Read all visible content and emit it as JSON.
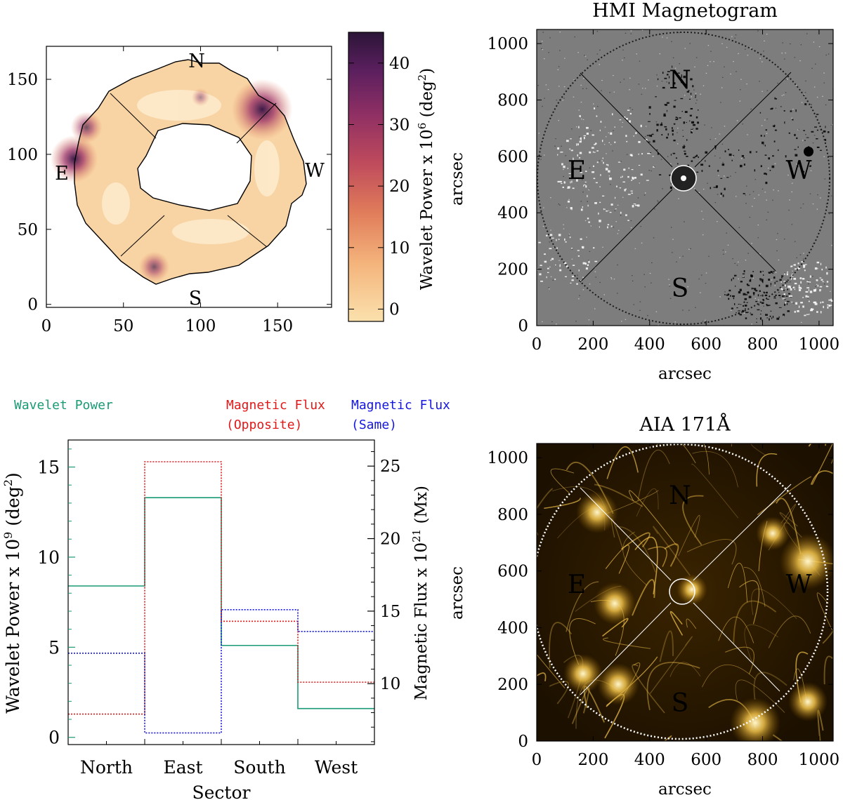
{
  "colors": {
    "wavelet": "#1a9a74",
    "opposite": "#e01818",
    "same": "#1515e0",
    "aia_bg": "#2a1800",
    "aia_bright": "#f3c44a",
    "hmi_bg": "#7d7d7d"
  },
  "chart_data": [
    {
      "id": "wavelet-map",
      "type": "heatmap",
      "title": "",
      "xlabel": "",
      "ylabel": "arcsec",
      "xlim": [
        0,
        185
      ],
      "ylim": [
        -2,
        172
      ],
      "xticks": [
        "0",
        "50",
        "100",
        "150"
      ],
      "yticks": [
        "0",
        "50",
        "100",
        "150"
      ],
      "directions": {
        "n": "N",
        "s": "S",
        "e": "E",
        "w": "W"
      },
      "colorbar": {
        "label": "Wavelet Power x 10",
        "exponent": "6",
        "unit_open": "(deg",
        "unit_exp": "2",
        "unit_close": ")",
        "range": [
          -2,
          45
        ],
        "ticks": [
          "0",
          "10",
          "20",
          "30",
          "40"
        ]
      },
      "hot_spots": [
        {
          "x": 140,
          "y": 130,
          "value": 44
        },
        {
          "x": 18,
          "y": 97,
          "value": 32
        },
        {
          "x": 26,
          "y": 118,
          "value": 18
        },
        {
          "x": 70,
          "y": 25,
          "value": 17
        },
        {
          "x": 100,
          "y": 138,
          "value": 6
        }
      ]
    },
    {
      "id": "hmi",
      "type": "heatmap",
      "title": "HMI Magnetogram",
      "xlabel": "arcsec",
      "xlim": [
        0,
        1050
      ],
      "ylim": [
        0,
        1050
      ],
      "xticks": [
        "0",
        "200",
        "400",
        "600",
        "800",
        "1000"
      ],
      "yticks": [
        "0",
        "200",
        "400",
        "600",
        "800",
        "1000"
      ],
      "directions": {
        "n": "N",
        "s": "S",
        "e": "E",
        "w": "W"
      }
    },
    {
      "id": "sector-bars",
      "type": "bar",
      "categories": [
        "North",
        "East",
        "South",
        "West"
      ],
      "xlabel": "Sector",
      "ylabel_left": "Wavelet Power x 10",
      "ylabel_left_exp": "9",
      "ylabel_left_unit": "(deg",
      "ylabel_left_unit_exp": "2",
      "ylabel_right": "Magnetic Flux x 10",
      "ylabel_right_exp": "21",
      "ylabel_right_unit": "(Mx)",
      "ylim_left": [
        -0.4,
        16.5
      ],
      "ylim_right": [
        5.8,
        26.8
      ],
      "yticks_left": [
        "0",
        "5",
        "10",
        "15"
      ],
      "yticks_right": [
        "10",
        "15",
        "20",
        "25"
      ],
      "legend": {
        "wavelet": "Wavelet Power",
        "opposite_1": "Magnetic Flux",
        "opposite_2": "(Opposite)",
        "same_1": "Magnetic Flux",
        "same_2": "(Same)"
      },
      "series": [
        {
          "name": "Wavelet Power",
          "axis": "left",
          "values": [
            8.4,
            13.3,
            5.1,
            1.6
          ]
        },
        {
          "name": "Magnetic Flux (Opposite)",
          "axis": "right",
          "values": [
            7.9,
            25.3,
            14.3,
            10.1
          ]
        },
        {
          "name": "Magnetic Flux (Same)",
          "axis": "right",
          "values": [
            12.1,
            6.6,
            15.1,
            13.6
          ]
        }
      ]
    },
    {
      "id": "aia",
      "type": "heatmap",
      "title": "AIA 171Å",
      "xlabel": "arcsec",
      "ylabel": "arcsec",
      "xlim": [
        0,
        1050
      ],
      "ylim": [
        0,
        1050
      ],
      "xticks": [
        "0",
        "200",
        "400",
        "600",
        "800",
        "1000"
      ],
      "yticks": [
        "0",
        "200",
        "400",
        "600",
        "800",
        "1000"
      ],
      "directions": {
        "n": "N",
        "s": "S",
        "e": "E",
        "w": "W"
      }
    }
  ]
}
